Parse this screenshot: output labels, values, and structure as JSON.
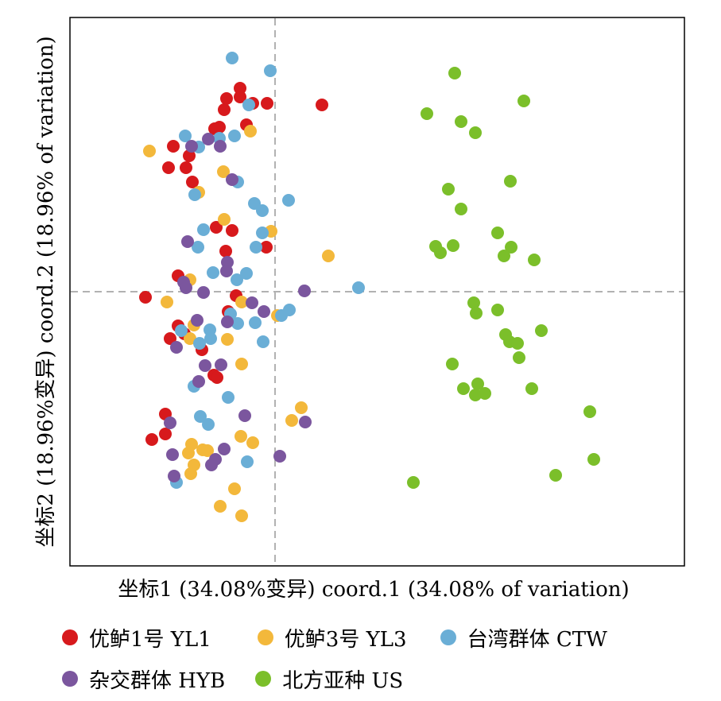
{
  "chart_data": {
    "type": "scatter",
    "xlabel": "坐标1 (34.08%变异) coord.1 (34.08% of variation)",
    "ylabel": "坐标2 (18.96%变异) coord.2 (18.96% of variation)",
    "xlim": [
      0,
      907
    ],
    "ylim": [
      -882,
      0
    ],
    "reference_lines": {
      "x": 346,
      "y": -367
    },
    "grid": false,
    "legend_position": "bottom",
    "series": [
      {
        "name": "优鲈1号 YL1",
        "color": "#d7191c",
        "points": [
          [
            302,
            111
          ],
          [
            285,
            124
          ],
          [
            302,
            122
          ],
          [
            282,
            138
          ],
          [
            318,
            130
          ],
          [
            336,
            130
          ],
          [
            405,
            132
          ],
          [
            276,
            160
          ],
          [
            270,
            162
          ],
          [
            310,
            157
          ],
          [
            218,
            184
          ],
          [
            238,
            196
          ],
          [
            234,
            211
          ],
          [
            212,
            211
          ],
          [
            242,
            229
          ],
          [
            272,
            286
          ],
          [
            292,
            290
          ],
          [
            284,
            316
          ],
          [
            335,
            311
          ],
          [
            224,
            347
          ],
          [
            183,
            374
          ],
          [
            297,
            372
          ],
          [
            287,
            392
          ],
          [
            224,
            410
          ],
          [
            214,
            426
          ],
          [
            232,
            420
          ],
          [
            254,
            440
          ],
          [
            269,
            472
          ],
          [
            273,
            475
          ],
          [
            208,
            521
          ],
          [
            191,
            553
          ],
          [
            208,
            546
          ]
        ]
      },
      {
        "name": "优鲈3号 YL3",
        "color": "#f3b83b",
        "points": [
          [
            315,
            165
          ],
          [
            188,
            190
          ],
          [
            281,
            216
          ],
          [
            250,
            242
          ],
          [
            282,
            276
          ],
          [
            341,
            291
          ],
          [
            413,
            322
          ],
          [
            239,
            352
          ],
          [
            210,
            380
          ],
          [
            304,
            380
          ],
          [
            349,
            397
          ],
          [
            244,
            409
          ],
          [
            239,
            426
          ],
          [
            286,
            427
          ],
          [
            304,
            458
          ],
          [
            379,
            513
          ],
          [
            367,
            529
          ],
          [
            241,
            559
          ],
          [
            237,
            570
          ],
          [
            255,
            566
          ],
          [
            261,
            567
          ],
          [
            303,
            549
          ],
          [
            318,
            557
          ],
          [
            244,
            585
          ],
          [
            240,
            596
          ],
          [
            295,
            615
          ],
          [
            277,
            637
          ],
          [
            304,
            649
          ]
        ]
      },
      {
        "name": "台湾群体 CTW",
        "color": "#6aaed6",
        "points": [
          [
            292,
            73
          ],
          [
            340,
            89
          ],
          [
            313,
            132
          ],
          [
            233,
            171
          ],
          [
            250,
            185
          ],
          [
            295,
            171
          ],
          [
            276,
            174
          ],
          [
            299,
            229
          ],
          [
            245,
            245
          ],
          [
            320,
            256
          ],
          [
            330,
            265
          ],
          [
            363,
            252
          ],
          [
            256,
            289
          ],
          [
            330,
            293
          ],
          [
            249,
            311
          ],
          [
            322,
            311
          ],
          [
            268,
            343
          ],
          [
            298,
            352
          ],
          [
            310,
            344
          ],
          [
            451,
            362
          ],
          [
            364,
            390
          ],
          [
            290,
            395
          ],
          [
            299,
            407
          ],
          [
            321,
            406
          ],
          [
            354,
            397
          ],
          [
            228,
            416
          ],
          [
            264,
            415
          ],
          [
            265,
            426
          ],
          [
            251,
            432
          ],
          [
            331,
            430
          ],
          [
            244,
            486
          ],
          [
            287,
            500
          ],
          [
            252,
            524
          ],
          [
            262,
            534
          ],
          [
            311,
            581
          ],
          [
            222,
            607
          ]
        ]
      },
      {
        "name": "杂交群体 HYB",
        "color": "#7b569e",
        "points": [
          [
            241,
            184
          ],
          [
            262,
            175
          ],
          [
            277,
            184
          ],
          [
            292,
            226
          ],
          [
            236,
            304
          ],
          [
            286,
            330
          ],
          [
            285,
            341
          ],
          [
            231,
            355
          ],
          [
            234,
            362
          ],
          [
            383,
            366
          ],
          [
            256,
            368
          ],
          [
            317,
            381
          ],
          [
            332,
            392
          ],
          [
            286,
            405
          ],
          [
            248,
            403
          ],
          [
            222,
            437
          ],
          [
            258,
            460
          ],
          [
            278,
            459
          ],
          [
            250,
            480
          ],
          [
            308,
            523
          ],
          [
            384,
            531
          ],
          [
            214,
            532
          ],
          [
            282,
            565
          ],
          [
            217,
            572
          ],
          [
            271,
            578
          ],
          [
            266,
            585
          ],
          [
            352,
            574
          ],
          [
            219,
            599
          ]
        ]
      },
      {
        "name": "北方亚种 US",
        "color": "#7bbf2a",
        "points": [
          [
            572,
            92
          ],
          [
            659,
            127
          ],
          [
            537,
            143
          ],
          [
            580,
            153
          ],
          [
            598,
            167
          ],
          [
            642,
            228
          ],
          [
            564,
            238
          ],
          [
            580,
            263
          ],
          [
            626,
            293
          ],
          [
            548,
            310
          ],
          [
            554,
            318
          ],
          [
            570,
            309
          ],
          [
            643,
            311
          ],
          [
            634,
            322
          ],
          [
            672,
            327
          ],
          [
            596,
            381
          ],
          [
            626,
            390
          ],
          [
            599,
            394
          ],
          [
            681,
            416
          ],
          [
            636,
            421
          ],
          [
            641,
            430
          ],
          [
            651,
            432
          ],
          [
            653,
            450
          ],
          [
            569,
            458
          ],
          [
            583,
            489
          ],
          [
            601,
            483
          ],
          [
            598,
            497
          ],
          [
            610,
            495
          ],
          [
            669,
            489
          ],
          [
            742,
            518
          ],
          [
            747,
            578
          ],
          [
            699,
            598
          ],
          [
            520,
            607
          ]
        ]
      }
    ]
  },
  "legend": {
    "row1": [
      "优鲈1号 YL1",
      "优鲈3号 YL3",
      "台湾群体 CTW"
    ],
    "row2": [
      "杂交群体 HYB",
      "北方亚种 US"
    ]
  },
  "colors": {
    "YL1": "#d7191c",
    "YL3": "#f3b83b",
    "CTW": "#6aaed6",
    "HYB": "#7b569e",
    "US": "#7bbf2a",
    "refline": "#999999"
  }
}
